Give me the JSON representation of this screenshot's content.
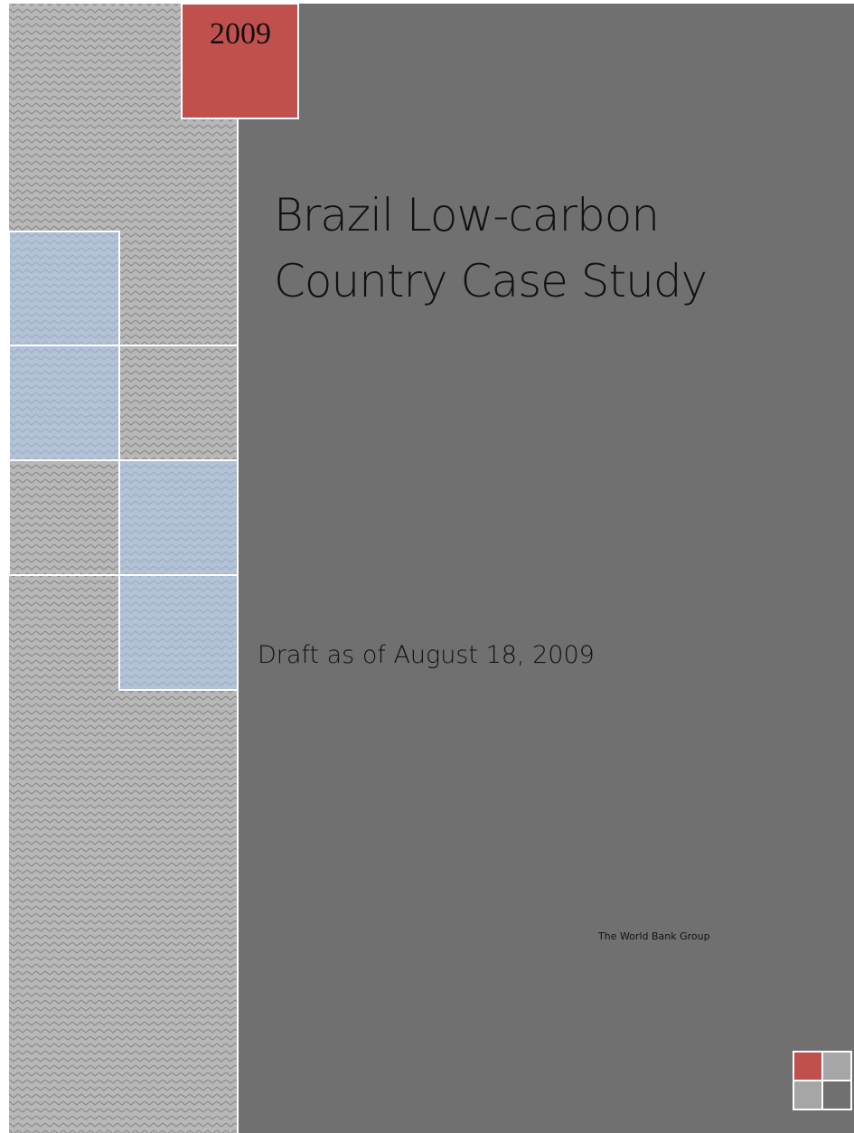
{
  "year": "2009",
  "title": [
    "Brazil Low-carbon",
    "Country Case Study"
  ],
  "subtitle": "Draft as of August 18, 2009",
  "publisher": "The World Bank Group"
}
